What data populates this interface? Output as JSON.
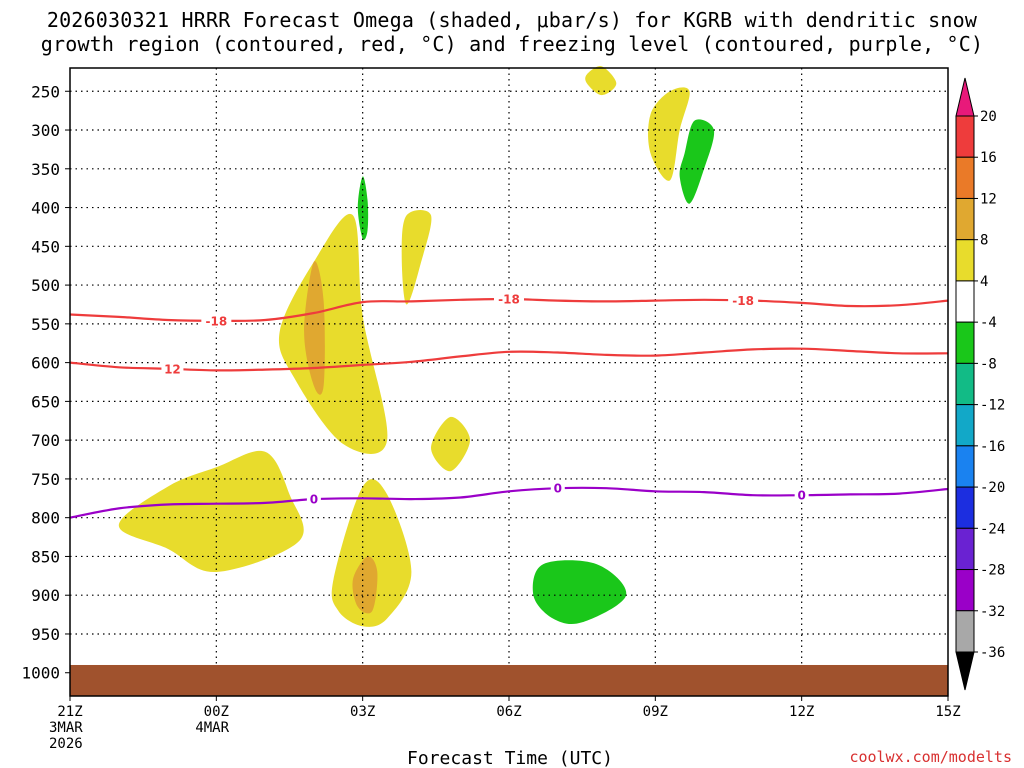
{
  "chart_data": {
    "type": "contour",
    "title_line1": "2026030321 HRRR Forecast Omega (shaded, μbar/s) for KGRB with dendritic snow",
    "title_line2": "growth region (contoured, red, °C) and freezing level (contoured, purple, °C)",
    "xlabel": "Forecast Time (UTC)",
    "ylabel": "",
    "credit": "coolwx.com/modelts",
    "x_range": [
      0,
      18
    ],
    "y_range": [
      220,
      1030
    ],
    "x_ticks": [
      {
        "h": 0,
        "lines": [
          "21Z",
          "3MAR",
          "2026"
        ]
      },
      {
        "h": 3,
        "lines": [
          "00Z",
          "4MAR"
        ]
      },
      {
        "h": 6,
        "lines": [
          "03Z"
        ]
      },
      {
        "h": 9,
        "lines": [
          "06Z"
        ]
      },
      {
        "h": 12,
        "lines": [
          "09Z"
        ]
      },
      {
        "h": 15,
        "lines": [
          "12Z"
        ]
      },
      {
        "h": 18,
        "lines": [
          "15Z"
        ]
      }
    ],
    "y_ticks": [
      250,
      300,
      350,
      400,
      450,
      500,
      550,
      600,
      650,
      700,
      750,
      800,
      850,
      900,
      950,
      1000
    ],
    "ground_level_hpa": 990,
    "contours": [
      {
        "name": "dendritic-upper",
        "label": "-18",
        "color": "#ee3c3c",
        "points": [
          [
            0,
            538
          ],
          [
            1,
            541
          ],
          [
            2,
            545
          ],
          [
            3,
            546
          ],
          [
            4,
            545
          ],
          [
            5,
            536
          ],
          [
            6,
            522
          ],
          [
            7,
            521
          ],
          [
            8,
            519
          ],
          [
            9,
            518
          ],
          [
            10,
            520
          ],
          [
            11,
            521
          ],
          [
            12,
            520
          ],
          [
            13,
            519
          ],
          [
            14,
            520
          ],
          [
            15,
            523
          ],
          [
            16,
            527
          ],
          [
            17,
            526
          ],
          [
            18,
            520
          ]
        ],
        "label_at": [
          3,
          9,
          13.8
        ]
      },
      {
        "name": "dendritic-lower",
        "label": "12",
        "color": "#ee3c3c",
        "points": [
          [
            0,
            600
          ],
          [
            1,
            606
          ],
          [
            2,
            608
          ],
          [
            3,
            610
          ],
          [
            4,
            609
          ],
          [
            5,
            607
          ],
          [
            6,
            603
          ],
          [
            7,
            599
          ],
          [
            8,
            592
          ],
          [
            9,
            586
          ],
          [
            10,
            587
          ],
          [
            11,
            590
          ],
          [
            12,
            591
          ],
          [
            13,
            587
          ],
          [
            14,
            583
          ],
          [
            15,
            582
          ],
          [
            16,
            585
          ],
          [
            17,
            588
          ],
          [
            18,
            588
          ]
        ],
        "label_at": [
          2.1
        ]
      },
      {
        "name": "freezing-level",
        "label": "0",
        "color": "#9a00c8",
        "points": [
          [
            0,
            800
          ],
          [
            1,
            788
          ],
          [
            2,
            783
          ],
          [
            3,
            782
          ],
          [
            4,
            781
          ],
          [
            5,
            776
          ],
          [
            6,
            775
          ],
          [
            7,
            776
          ],
          [
            8,
            774
          ],
          [
            9,
            766
          ],
          [
            10,
            762
          ],
          [
            11,
            762
          ],
          [
            12,
            766
          ],
          [
            13,
            767
          ],
          [
            14,
            771
          ],
          [
            15,
            771
          ],
          [
            16,
            770
          ],
          [
            17,
            769
          ],
          [
            18,
            763
          ]
        ],
        "label_at": [
          5,
          10,
          15
        ]
      }
    ],
    "shaded_regions": [
      {
        "name": "upward-4-8",
        "color": "#e8dc2c",
        "points": [
          [
            1,
            810
          ],
          [
            2,
            760
          ],
          [
            3,
            735
          ],
          [
            4,
            715
          ],
          [
            4.5,
            770
          ],
          [
            4.7,
            830
          ],
          [
            3,
            870
          ],
          [
            2,
            840
          ]
        ]
      },
      {
        "name": "upward-4-8",
        "color": "#e8dc2c",
        "points": [
          [
            4.3,
            560
          ],
          [
            5,
            470
          ],
          [
            5.8,
            410
          ],
          [
            6.0,
            540
          ],
          [
            6.5,
            700
          ],
          [
            5.6,
            705
          ],
          [
            4.6,
            620
          ]
        ]
      },
      {
        "name": "upward-8-12",
        "color": "#e0a830",
        "points": [
          [
            4.8,
            560
          ],
          [
            5.0,
            470
          ],
          [
            5.2,
            520
          ],
          [
            5.2,
            630
          ],
          [
            5.0,
            630
          ]
        ]
      },
      {
        "name": "upward-4-8",
        "color": "#e8dc2c",
        "points": [
          [
            5.4,
            880
          ],
          [
            6,
            760
          ],
          [
            6.5,
            770
          ],
          [
            7.0,
            870
          ],
          [
            6.5,
            930
          ],
          [
            6,
            940
          ],
          [
            5.5,
            920
          ]
        ]
      },
      {
        "name": "upward-8-12",
        "color": "#e0a830",
        "points": [
          [
            5.8,
            880
          ],
          [
            6.1,
            850
          ],
          [
            6.3,
            870
          ],
          [
            6.2,
            920
          ],
          [
            5.9,
            915
          ]
        ]
      },
      {
        "name": "downward-4-8",
        "color": "#1ac71a",
        "points": [
          [
            6,
            360
          ],
          [
            6.1,
            390
          ],
          [
            6.1,
            430
          ],
          [
            6,
            440
          ],
          [
            5.9,
            400
          ]
        ]
      },
      {
        "name": "upward-4-8",
        "color": "#e8dc2c",
        "points": [
          [
            6.9,
            410
          ],
          [
            7.4,
            410
          ],
          [
            7.2,
            470
          ],
          [
            6.9,
            525
          ],
          [
            6.8,
            460
          ]
        ]
      },
      {
        "name": "upward-4-8",
        "color": "#e8dc2c",
        "points": [
          [
            7.4,
            710
          ],
          [
            7.8,
            670
          ],
          [
            8.2,
            700
          ],
          [
            7.8,
            740
          ]
        ]
      },
      {
        "name": "upward-4-8",
        "color": "#e8dc2c",
        "points": [
          [
            10.6,
            228
          ],
          [
            10.9,
            218
          ],
          [
            11.2,
            240
          ],
          [
            10.9,
            255
          ],
          [
            10.6,
            240
          ]
        ]
      },
      {
        "name": "upward-4-8",
        "color": "#e8dc2c",
        "points": [
          [
            11.9,
            280
          ],
          [
            12.3,
            250
          ],
          [
            12.7,
            250
          ],
          [
            12.5,
            300
          ],
          [
            12.3,
            365
          ],
          [
            11.9,
            330
          ]
        ]
      },
      {
        "name": "downward-4-8",
        "color": "#1ac71a",
        "points": [
          [
            12.6,
            330
          ],
          [
            12.8,
            288
          ],
          [
            13.2,
            300
          ],
          [
            13.0,
            350
          ],
          [
            12.7,
            395
          ],
          [
            12.5,
            360
          ]
        ]
      },
      {
        "name": "downward-4-8",
        "color": "#1ac71a",
        "points": [
          [
            9.5,
            900
          ],
          [
            9.7,
            860
          ],
          [
            10.8,
            860
          ],
          [
            11.4,
            900
          ],
          [
            10.5,
            935
          ],
          [
            9.9,
            930
          ]
        ]
      }
    ],
    "colorbar": {
      "labels": [
        "20",
        "16",
        "12",
        "8",
        "4",
        "-4",
        "-8",
        "-12",
        "-16",
        "-20",
        "-24",
        "-28",
        "-32",
        "-36"
      ],
      "colors": [
        "#e8197a",
        "#ee3c3c",
        "#ea7a28",
        "#e0a830",
        "#e8dc2c",
        "#ffffff",
        "#1ac71a",
        "#12bb86",
        "#12a8c8",
        "#1a82f0",
        "#1c2ee0",
        "#6a22d2",
        "#9a00c8",
        "#a8a8a8",
        "#000000"
      ]
    }
  }
}
